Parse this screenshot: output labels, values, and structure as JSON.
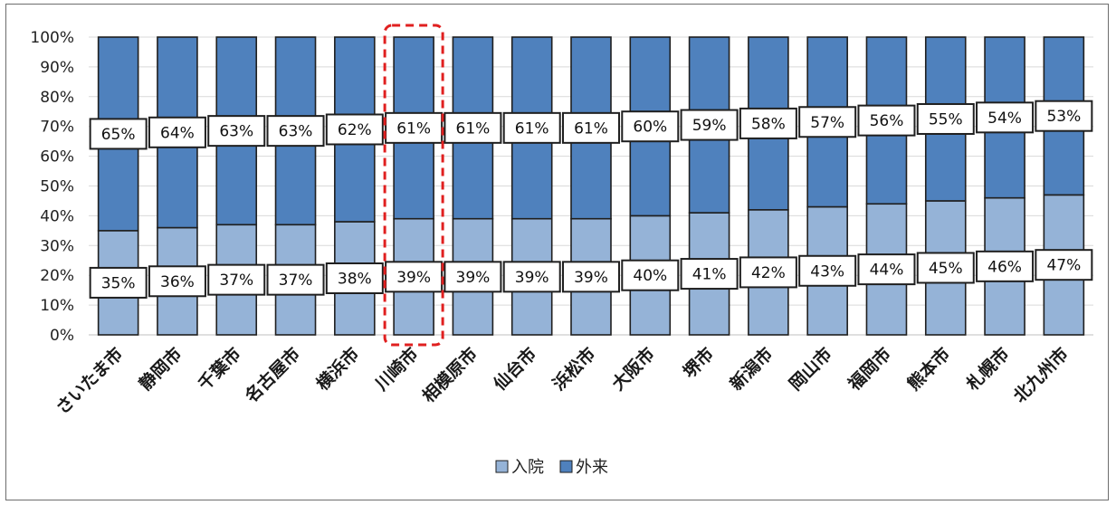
{
  "chart_data": {
    "type": "bar",
    "stacked": true,
    "categories": [
      "さいたま市",
      "静岡市",
      "千葉市",
      "名古屋市",
      "横浜市",
      "川崎市",
      "相模原市",
      "仙台市",
      "浜松市",
      "大阪市",
      "堺市",
      "新潟市",
      "岡山市",
      "福岡市",
      "熊本市",
      "札幌市",
      "北九州市"
    ],
    "series": [
      {
        "name": "入院",
        "color": "#95b3d7",
        "values": [
          35,
          36,
          37,
          37,
          38,
          39,
          39,
          39,
          39,
          40,
          41,
          42,
          43,
          44,
          45,
          46,
          47
        ]
      },
      {
        "name": "外来",
        "color": "#4f81bd",
        "values": [
          65,
          64,
          63,
          63,
          62,
          61,
          61,
          61,
          61,
          60,
          59,
          58,
          57,
          56,
          55,
          54,
          53
        ]
      }
    ],
    "series_labels": [
      [
        "35%",
        "36%",
        "37%",
        "37%",
        "38%",
        "39%",
        "39%",
        "39%",
        "39%",
        "40%",
        "41%",
        "42%",
        "43%",
        "44%",
        "45%",
        "46%",
        "47%"
      ],
      [
        "65%",
        "64%",
        "63%",
        "63%",
        "62%",
        "61%",
        "61%",
        "61%",
        "61%",
        "60%",
        "59%",
        "58%",
        "57%",
        "56%",
        "55%",
        "54%",
        "53%"
      ]
    ],
    "yticks": [
      "0%",
      "10%",
      "20%",
      "30%",
      "40%",
      "50%",
      "60%",
      "70%",
      "80%",
      "90%",
      "100%"
    ],
    "ylim": [
      0,
      100
    ],
    "grid": true,
    "legend_position": "bottom",
    "highlight_category": "川崎市",
    "highlight_color": "#e02020"
  }
}
